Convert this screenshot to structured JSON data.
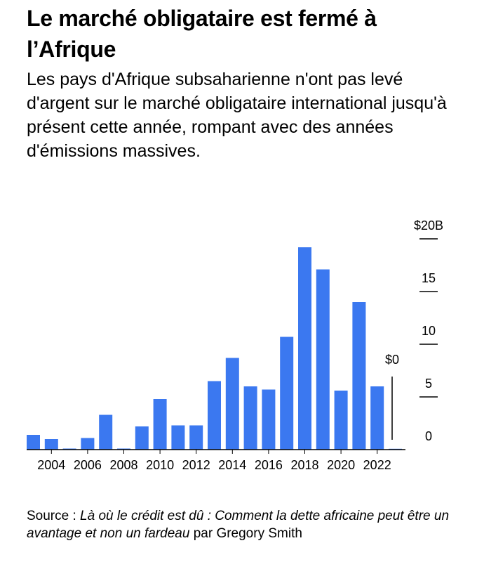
{
  "header": {
    "title": "Le marché obligataire est fermé à l’Afrique",
    "subtitle": "Les pays d'Afrique subsaharienne n'ont pas levé d'argent sur le marché obligataire international jusqu'à présent cette année, rompant avec des années d'émissions massives."
  },
  "footer": {
    "prefix": "Source : ",
    "italic": "Là où le crédit est dû : Comment la dette africaine peut être un avantage et non un fardeau",
    "suffix": " par Gregory Smith"
  },
  "chart_data": {
    "type": "bar",
    "title": "Le marché obligataire est fermé à l’Afrique",
    "unit": "milliards USD",
    "categories": [
      "2003",
      "2004",
      "2005",
      "2006",
      "2007",
      "2008",
      "2009",
      "2010",
      "2011",
      "2012",
      "2013",
      "2014",
      "2015",
      "2016",
      "2017",
      "2018",
      "2019",
      "2020",
      "2021",
      "2022",
      "2023"
    ],
    "values": [
      1.4,
      1.0,
      0.1,
      1.1,
      3.3,
      0.1,
      2.2,
      4.8,
      2.3,
      2.3,
      6.5,
      8.7,
      6.0,
      5.7,
      10.7,
      19.2,
      17.1,
      5.6,
      14.0,
      6.0,
      0
    ],
    "bar_color": "#3b78f0",
    "x_tick_labels": [
      "2004",
      "2006",
      "2008",
      "2010",
      "2012",
      "2014",
      "2016",
      "2018",
      "2020",
      "2022"
    ],
    "y_ticks": [
      {
        "value": 0,
        "label": "0"
      },
      {
        "value": 5,
        "label": "5"
      },
      {
        "value": 10,
        "label": "10"
      },
      {
        "value": 15,
        "label": "15"
      },
      {
        "value": 20,
        "label": "$20B"
      }
    ],
    "ylim": [
      0,
      20
    ],
    "annotation": {
      "category": "2023",
      "value": 0,
      "label": "$0"
    }
  }
}
